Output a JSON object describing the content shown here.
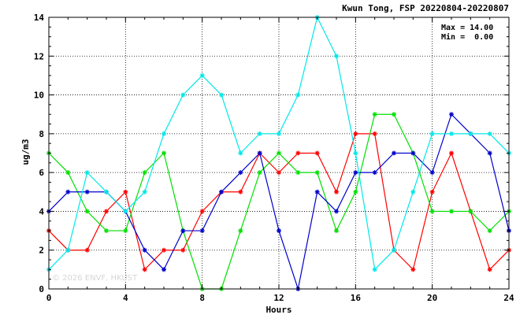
{
  "chart_data": {
    "type": "line",
    "title": "Kwun Tong, FSP 20220804-20220807",
    "stats": {
      "max_label": "Max = 14.00",
      "min_label": "Min =  0.00"
    },
    "xlabel": "Hours",
    "ylabel": "ug/m3",
    "xlim": [
      0,
      24
    ],
    "ylim": [
      0,
      14
    ],
    "x_ticks": [
      0,
      4,
      8,
      12,
      16,
      20,
      24
    ],
    "y_ticks": [
      0,
      2,
      4,
      6,
      8,
      10,
      12,
      14
    ],
    "grid": true,
    "x": [
      0,
      1,
      2,
      3,
      4,
      5,
      6,
      7,
      8,
      9,
      10,
      11,
      12,
      13,
      14,
      15,
      16,
      17,
      18,
      19,
      20,
      21,
      22,
      23,
      24
    ],
    "series": [
      {
        "color": "#ff0000",
        "values": [
          3,
          2,
          2,
          4,
          5,
          1,
          2,
          2,
          4,
          5,
          5,
          7,
          6,
          7,
          7,
          5,
          8,
          8,
          2,
          1,
          5,
          7,
          4,
          1,
          2
        ]
      },
      {
        "color": "#00e000",
        "values": [
          7,
          6,
          4,
          3,
          3,
          6,
          7,
          3,
          0,
          0,
          3,
          6,
          7,
          6,
          6,
          3,
          5,
          9,
          9,
          7,
          4,
          4,
          4,
          3,
          4
        ]
      },
      {
        "color": "#0000cc",
        "values": [
          4,
          5,
          5,
          5,
          4,
          2,
          1,
          3,
          3,
          5,
          6,
          7,
          3,
          0,
          5,
          4,
          6,
          6,
          7,
          7,
          6,
          9,
          8,
          7,
          3
        ]
      },
      {
        "color": "#00e8e8",
        "values": [
          1,
          2,
          6,
          5,
          4,
          5,
          8,
          10,
          11,
          10,
          7,
          8,
          8,
          10,
          14,
          12,
          7,
          1,
          2,
          5,
          8,
          8,
          8,
          8,
          7
        ]
      }
    ],
    "watermark": "© 2026  ENVF, HKUST"
  }
}
